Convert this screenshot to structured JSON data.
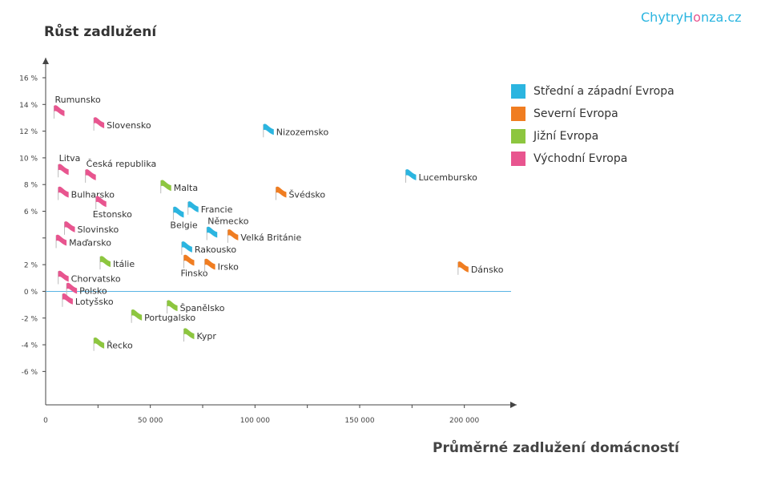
{
  "brand": {
    "prefix": "ChytryH",
    "highlight": "o",
    "suffix": "nza.cz"
  },
  "chart_data": {
    "type": "scatter",
    "ylabel": "Růst zadlužení",
    "xlabel": "Průměrné zadlužení domácností",
    "xlim": [
      0,
      225000
    ],
    "ylim": [
      -8.5,
      17.5
    ],
    "x_ticks": [
      0,
      50000,
      100000,
      150000,
      200000
    ],
    "x_tick_labels": [
      "0",
      "50 000",
      "100 000",
      "150 000",
      "200 000"
    ],
    "y_ticks": [
      -6,
      -4,
      -2,
      0,
      2,
      4,
      6,
      8,
      10,
      12,
      14,
      16
    ],
    "y_tick_labels": [
      "-6 %",
      "-4 %",
      "-2 %",
      "0 %",
      "2 %",
      "",
      "6 %",
      "8 %",
      "10 %",
      "12 %",
      "14 %",
      "16 %"
    ],
    "zero_line_color": "#5ab4e5",
    "legend_position": "top-right",
    "series": [
      {
        "name": "Střední a západní Evropa",
        "color": "#2bb5e0",
        "points": [
          {
            "label": "Nizozemsko",
            "x": 104000,
            "y": 12.2,
            "label_pos": "right"
          },
          {
            "label": "Lucembursko",
            "x": 172000,
            "y": 8.8,
            "label_pos": "right"
          },
          {
            "label": "Francie",
            "x": 68000,
            "y": 6.4,
            "label_pos": "right"
          },
          {
            "label": "Belgie",
            "x": 61000,
            "y": 6.0,
            "label_pos": "below"
          },
          {
            "label": "Německo",
            "x": 77000,
            "y": 4.5,
            "label_pos": "above"
          },
          {
            "label": "Rakousko",
            "x": 65000,
            "y": 3.4,
            "label_pos": "right"
          }
        ]
      },
      {
        "name": "Severní Evropa",
        "color": "#f07d21",
        "points": [
          {
            "label": "Švédsko",
            "x": 110000,
            "y": 7.5,
            "label_pos": "right"
          },
          {
            "label": "Velká Británie",
            "x": 87000,
            "y": 4.3,
            "label_pos": "right"
          },
          {
            "label": "Finsko",
            "x": 66000,
            "y": 2.4,
            "label_pos": "below"
          },
          {
            "label": "Irsko",
            "x": 76000,
            "y": 2.1,
            "label_pos": "right"
          },
          {
            "label": "Dánsko",
            "x": 197000,
            "y": 1.9,
            "label_pos": "right"
          }
        ]
      },
      {
        "name": "Jižní Evropa",
        "color": "#8dc63f",
        "points": [
          {
            "label": "Malta",
            "x": 55000,
            "y": 8.0,
            "label_pos": "right"
          },
          {
            "label": "Itálie",
            "x": 26000,
            "y": 2.3,
            "label_pos": "right"
          },
          {
            "label": "Španělsko",
            "x": 58000,
            "y": -1.0,
            "label_pos": "right"
          },
          {
            "label": "Portugalsko",
            "x": 41000,
            "y": -1.7,
            "label_pos": "right"
          },
          {
            "label": "Kypr",
            "x": 66000,
            "y": -3.1,
            "label_pos": "right"
          },
          {
            "label": "Řecko",
            "x": 23000,
            "y": -3.8,
            "label_pos": "right"
          }
        ]
      },
      {
        "name": "Východní Evropa",
        "color": "#e8558f",
        "points": [
          {
            "label": "Rumunsko",
            "x": 4000,
            "y": 13.6,
            "label_pos": "above"
          },
          {
            "label": "Slovensko",
            "x": 23000,
            "y": 12.7,
            "label_pos": "right"
          },
          {
            "label": "Litva",
            "x": 6000,
            "y": 9.2,
            "label_pos": "above"
          },
          {
            "label": "Česká republika",
            "x": 19000,
            "y": 8.8,
            "label_pos": "above"
          },
          {
            "label": "Bulharsko",
            "x": 6000,
            "y": 7.5,
            "label_pos": "right"
          },
          {
            "label": "Estonsko",
            "x": 24000,
            "y": 6.8,
            "label_pos": "below"
          },
          {
            "label": "Slovinsko",
            "x": 9000,
            "y": 4.9,
            "label_pos": "right"
          },
          {
            "label": "Maďarsko",
            "x": 5000,
            "y": 3.9,
            "label_pos": "right"
          },
          {
            "label": "Chorvatsko",
            "x": 6000,
            "y": 1.2,
            "label_pos": "right"
          },
          {
            "label": "Polsko",
            "x": 10000,
            "y": 0.3,
            "label_pos": "right"
          },
          {
            "label": "Lotyšsko",
            "x": 8000,
            "y": -0.5,
            "label_pos": "right"
          }
        ]
      }
    ]
  }
}
